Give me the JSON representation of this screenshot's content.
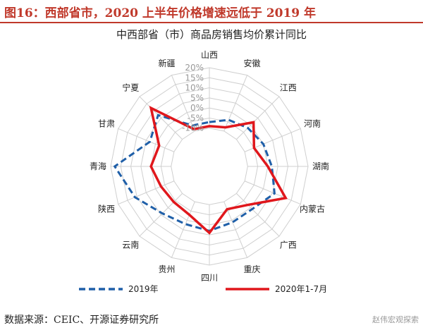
{
  "figure": {
    "title": "图16：西部省市，2020 上半年价格增速远低于 2019 年",
    "source": "数据来源：CEIC、开源证券研究所",
    "watermark": "赵伟宏观探索"
  },
  "colors": {
    "series_2019": "#1f5fa8",
    "series_2020": "#e0171c",
    "grid": "#cfcfcf",
    "accent": "#c0392b"
  },
  "chart_data": {
    "type": "radar",
    "title": "中西部省（市）商品房销售均价累计同比",
    "categories": [
      "山西",
      "安徽",
      "江西",
      "河南",
      "湖南",
      "内蒙古",
      "广西",
      "重庆",
      "四川",
      "贵州",
      "云南",
      "陕西",
      "青海",
      "甘肃",
      "宁夏",
      "新疆"
    ],
    "radial_ticks": [
      "-10%",
      "-5%",
      "0%",
      "5%",
      "10%",
      "15%",
      "20%"
    ],
    "rlim": [
      -15,
      20
    ],
    "grid": true,
    "legend_position": "bottom",
    "series": [
      {
        "name": "2019年",
        "style": "dashed",
        "values": [
          -7,
          -4,
          -2,
          0,
          2,
          6,
          1,
          1,
          3,
          2,
          4,
          11,
          18,
          3,
          7,
          -7
        ]
      },
      {
        "name": "2020年1-7月",
        "style": "solid",
        "values": [
          -9,
          -8,
          2,
          -5,
          0,
          12,
          -2,
          -6,
          4,
          -3,
          -4,
          -3,
          0,
          -2,
          12,
          -9
        ]
      }
    ]
  }
}
